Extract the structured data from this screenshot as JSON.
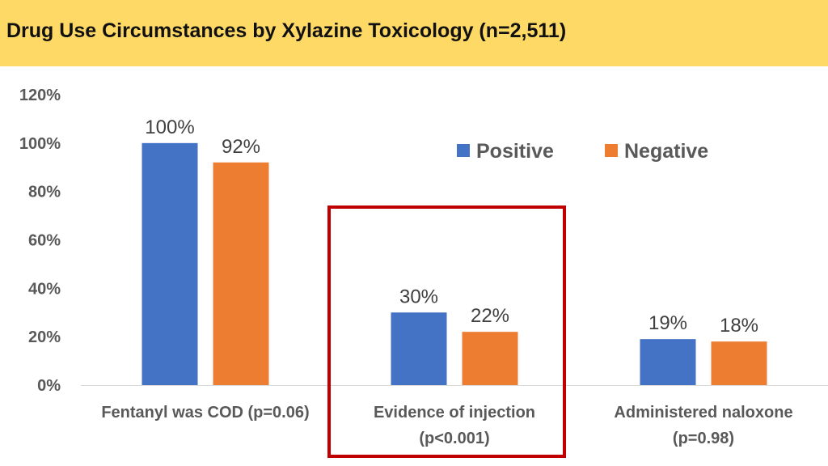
{
  "header": {
    "title": "Drug Use Circumstances by Xylazine Toxicology (n=2,511)"
  },
  "chart_data": {
    "type": "bar",
    "title": "Drug Use Circumstances by Xylazine Toxicology (n=2,511)",
    "categories": [
      [
        "Fentanyl was COD (p=0.06)"
      ],
      [
        "Evidence of injection",
        "(p<0.001)"
      ],
      [
        "Administered naloxone",
        "(p=0.98)"
      ]
    ],
    "series": [
      {
        "name": "Positive",
        "color": "#4472C4",
        "values": [
          100,
          30,
          19
        ],
        "labels": [
          "100%",
          "30%",
          "19%"
        ]
      },
      {
        "name": "Negative",
        "color": "#ED7D31",
        "values": [
          92,
          22,
          18
        ],
        "labels": [
          "92%",
          "22%",
          "18%"
        ]
      }
    ],
    "yticks": [
      "0%",
      "20%",
      "40%",
      "60%",
      "80%",
      "100%",
      "120%"
    ],
    "ylim": [
      0,
      120
    ],
    "grid": false,
    "legend": "top-right",
    "highlight": {
      "category_index": 1,
      "color": "#C00000"
    }
  }
}
